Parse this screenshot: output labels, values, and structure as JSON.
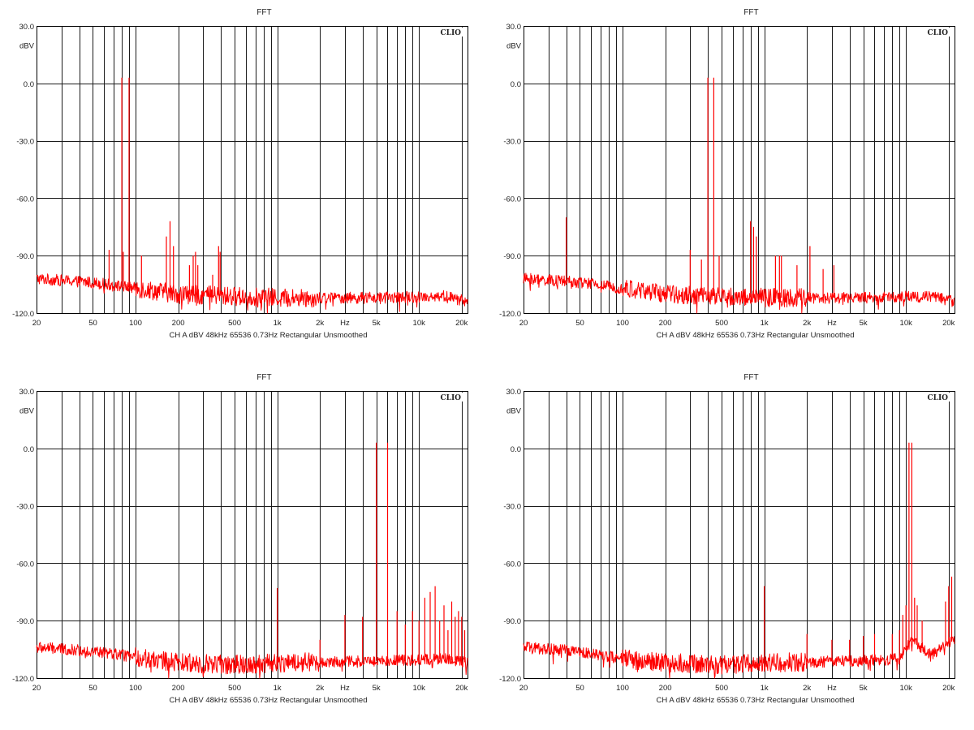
{
  "chart_data": [
    {
      "type": "line",
      "title": "FFT",
      "brand": "CLIO",
      "ylabel": "dBV",
      "xlabel": "Hz",
      "footer": "CH A  dBV  48kHz  65536  0.73Hz  Rectangular  Unsmoothed",
      "x_scale": "log",
      "xlim": [
        20,
        22000
      ],
      "ylim": [
        -120,
        30
      ],
      "y_ticks": [
        "30.0",
        "0.0",
        "-30.0",
        "-60.0",
        "-90.0",
        "-120.0"
      ],
      "x_ticks": [
        "20",
        "50",
        "100",
        "200",
        "500",
        "1k",
        "2k",
        "Hz",
        "5k",
        "10k",
        "20k"
      ],
      "grid": true,
      "color": "#ff0000",
      "noise_floor": [
        [
          20,
          -102
        ],
        [
          50,
          -104
        ],
        [
          100,
          -107
        ],
        [
          200,
          -110
        ],
        [
          400,
          -111
        ],
        [
          1000,
          -112
        ],
        [
          5000,
          -112
        ],
        [
          15000,
          -111
        ],
        [
          22000,
          -114
        ]
      ],
      "peaks": [
        [
          65,
          -87
        ],
        [
          80,
          3
        ],
        [
          82,
          -88
        ],
        [
          90,
          3
        ],
        [
          110,
          -90
        ],
        [
          165,
          -80
        ],
        [
          175,
          -72
        ],
        [
          185,
          -85
        ],
        [
          240,
          -95
        ],
        [
          255,
          -90
        ],
        [
          265,
          -88
        ],
        [
          275,
          -95
        ],
        [
          350,
          -100
        ],
        [
          385,
          -85
        ],
        [
          395,
          -88
        ]
      ]
    },
    {
      "type": "line",
      "title": "FFT",
      "brand": "CLIO",
      "ylabel": "dBV",
      "xlabel": "Hz",
      "footer": "CH A  dBV  48kHz  65536  0.73Hz  Rectangular  Unsmoothed",
      "x_scale": "log",
      "xlim": [
        20,
        22000
      ],
      "ylim": [
        -120,
        30
      ],
      "y_ticks": [
        "30.0",
        "0.0",
        "-30.0",
        "-60.0",
        "-90.0",
        "-120.0"
      ],
      "x_ticks": [
        "20",
        "50",
        "100",
        "200",
        "500",
        "1k",
        "2k",
        "Hz",
        "5k",
        "10k",
        "20k"
      ],
      "grid": true,
      "color": "#ff0000",
      "noise_floor": [
        [
          20,
          -102
        ],
        [
          50,
          -104
        ],
        [
          100,
          -107
        ],
        [
          200,
          -110
        ],
        [
          400,
          -111
        ],
        [
          1000,
          -112
        ],
        [
          5000,
          -112
        ],
        [
          15000,
          -111
        ],
        [
          22000,
          -114
        ]
      ],
      "peaks": [
        [
          40,
          -70
        ],
        [
          300,
          -87
        ],
        [
          360,
          -92
        ],
        [
          400,
          3
        ],
        [
          440,
          3
        ],
        [
          480,
          -90
        ],
        [
          800,
          -72
        ],
        [
          840,
          -75
        ],
        [
          880,
          -80
        ],
        [
          1200,
          -90
        ],
        [
          1280,
          -90
        ],
        [
          1320,
          -90
        ],
        [
          1700,
          -95
        ],
        [
          2100,
          -85
        ],
        [
          2600,
          -97
        ],
        [
          3100,
          -95
        ]
      ]
    },
    {
      "type": "line",
      "title": "FFT",
      "brand": "CLIO",
      "ylabel": "dBV",
      "xlabel": "Hz",
      "footer": "CH A  dBV  48kHz  65536  0.73Hz  Rectangular  Unsmoothed",
      "x_scale": "log",
      "xlim": [
        20,
        22000
      ],
      "ylim": [
        -120,
        30
      ],
      "y_ticks": [
        "30.0",
        "0.0",
        "-30.0",
        "-60.0",
        "-90.0",
        "-120.0"
      ],
      "x_ticks": [
        "20",
        "50",
        "100",
        "200",
        "500",
        "1k",
        "2k",
        "Hz",
        "5k",
        "10k",
        "20k"
      ],
      "grid": true,
      "color": "#ff0000",
      "noise_floor": [
        [
          20,
          -104
        ],
        [
          50,
          -106
        ],
        [
          100,
          -109
        ],
        [
          200,
          -112
        ],
        [
          500,
          -113
        ],
        [
          1000,
          -112
        ],
        [
          5000,
          -111
        ],
        [
          15000,
          -110
        ],
        [
          22000,
          -112
        ]
      ],
      "peaks": [
        [
          1000,
          -73
        ],
        [
          2000,
          -100
        ],
        [
          3000,
          -87
        ],
        [
          4000,
          -88
        ],
        [
          5000,
          3
        ],
        [
          6000,
          3
        ],
        [
          7000,
          -85
        ],
        [
          8000,
          -92
        ],
        [
          9000,
          -85
        ],
        [
          10000,
          -90
        ],
        [
          11000,
          -78
        ],
        [
          12000,
          -75
        ],
        [
          13000,
          -72
        ],
        [
          14000,
          -90
        ],
        [
          15000,
          -82
        ],
        [
          16000,
          -95
        ],
        [
          17000,
          -80
        ],
        [
          18000,
          -88
        ],
        [
          19000,
          -85
        ],
        [
          20000,
          -88
        ],
        [
          21000,
          -95
        ]
      ]
    },
    {
      "type": "line",
      "title": "FFT",
      "brand": "CLIO",
      "ylabel": "dBV",
      "xlabel": "Hz",
      "footer": "CH A  dBV  48kHz  65536  0.73Hz  Rectangular  Unsmoothed",
      "x_scale": "log",
      "xlim": [
        20,
        22000
      ],
      "ylim": [
        -120,
        30
      ],
      "y_ticks": [
        "30.0",
        "0.0",
        "-30.0",
        "-60.0",
        "-90.0",
        "-120.0"
      ],
      "x_ticks": [
        "20",
        "50",
        "100",
        "200",
        "500",
        "1k",
        "2k",
        "Hz",
        "5k",
        "10k",
        "20k"
      ],
      "grid": true,
      "color": "#ff0000",
      "noise_floor": [
        [
          20,
          -104
        ],
        [
          50,
          -106
        ],
        [
          100,
          -110
        ],
        [
          200,
          -112
        ],
        [
          500,
          -113
        ],
        [
          1000,
          -112
        ],
        [
          5000,
          -111
        ],
        [
          9000,
          -110
        ],
        [
          11000,
          -100
        ],
        [
          15000,
          -108
        ],
        [
          22000,
          -100
        ]
      ],
      "peaks": [
        [
          1000,
          -72
        ],
        [
          2000,
          -97
        ],
        [
          3000,
          -100
        ],
        [
          4000,
          -100
        ],
        [
          5000,
          -98
        ],
        [
          6000,
          -97
        ],
        [
          8000,
          -97
        ],
        [
          9000,
          -95
        ],
        [
          9500,
          -87
        ],
        [
          10000,
          -82
        ],
        [
          10500,
          3
        ],
        [
          11000,
          3
        ],
        [
          11500,
          -78
        ],
        [
          12000,
          -82
        ],
        [
          13000,
          -90
        ],
        [
          19000,
          -80
        ],
        [
          20000,
          -72
        ],
        [
          21000,
          -67
        ]
      ]
    }
  ]
}
